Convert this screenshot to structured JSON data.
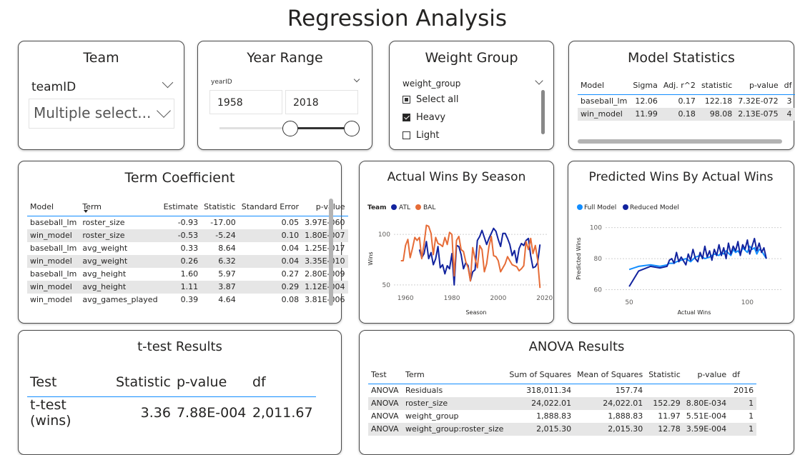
{
  "page": {
    "title": "Regression Analysis"
  },
  "team": {
    "title": "Team",
    "field": "teamID",
    "value": "Multiple select..."
  },
  "year_range": {
    "title": "Year Range",
    "field": "yearID",
    "start": "1958",
    "end": "2018"
  },
  "weight_group": {
    "title": "Weight Group",
    "field": "weight_group",
    "options": [
      {
        "label": "Select all",
        "state": "partial"
      },
      {
        "label": "Heavy",
        "state": "checked"
      },
      {
        "label": "Light",
        "state": "unchecked"
      }
    ]
  },
  "model_stats": {
    "title": "Model Statistics",
    "columns": [
      "Model",
      "Sigma",
      "Adj. r^2",
      "statistic",
      "p-value",
      "df"
    ],
    "rows": [
      [
        "baseball_lm",
        "12.06",
        "0.17",
        "122.18",
        "7.32E-072",
        "3"
      ],
      [
        "win_model",
        "11.99",
        "0.18",
        "98.08",
        "2.13E-075",
        "4"
      ]
    ]
  },
  "term_coef": {
    "title": "Term Coefficient",
    "columns": [
      "Model",
      "Term",
      "Estimate",
      "Statistic",
      "Standard Error",
      "p-value"
    ],
    "rows": [
      [
        "baseball_lm",
        "roster_size",
        "-0.93",
        "-17.00",
        "0.05",
        "3.97E-060"
      ],
      [
        "win_model",
        "roster_size",
        "-0.53",
        "-5.24",
        "0.10",
        "1.80E-007"
      ],
      [
        "baseball_lm",
        "avg_weight",
        "0.33",
        "8.64",
        "0.04",
        "1.25E-017"
      ],
      [
        "win_model",
        "avg_weight",
        "0.26",
        "6.32",
        "0.04",
        "3.35E-010"
      ],
      [
        "baseball_lm",
        "avg_height",
        "1.60",
        "5.97",
        "0.27",
        "2.80E-009"
      ],
      [
        "win_model",
        "avg_height",
        "1.11",
        "3.87",
        "0.29",
        "1.12E-004"
      ],
      [
        "win_model",
        "avg_games_played",
        "0.39",
        "4.64",
        "0.08",
        "3.81E-006"
      ]
    ]
  },
  "ttest": {
    "title": "t-test Results",
    "columns": [
      "Test",
      "Statistic",
      "p-value",
      "df"
    ],
    "rows": [
      [
        "t-test (wins)",
        "3.36",
        "7.88E-004",
        "2,011.67"
      ]
    ]
  },
  "anova": {
    "title": "ANOVA Results",
    "columns": [
      "Test",
      "Term",
      "Sum of Squares",
      "Mean of Squares",
      "Statistic",
      "p-value",
      "df"
    ],
    "rows": [
      [
        "ANOVA",
        "Residuals",
        "318,011.34",
        "157.74",
        "",
        "",
        "2016"
      ],
      [
        "ANOVA",
        "roster_size",
        "24,022.01",
        "24,022.01",
        "152.29",
        "8.80E-034",
        "1"
      ],
      [
        "ANOVA",
        "weight_group",
        "1,888.83",
        "1,888.83",
        "11.97",
        "5.51E-004",
        "1"
      ],
      [
        "ANOVA",
        "weight_group:roster_size",
        "2,015.30",
        "2,015.30",
        "12.78",
        "3.59E-004",
        "1"
      ]
    ]
  },
  "chart_data": [
    {
      "id": "actual_wins",
      "type": "line",
      "title": "Actual Wins By Season",
      "xlabel": "Season",
      "ylabel": "Wins",
      "legend_title": "Team",
      "xlim": [
        1955,
        2021
      ],
      "ylim": [
        45,
        110
      ],
      "xticks": [
        1960,
        1980,
        2000,
        2020
      ],
      "yticks": [
        50,
        100
      ],
      "series": [
        {
          "name": "ATL",
          "color": "#12239e",
          "x": [
            1966,
            1967,
            1968,
            1969,
            1970,
            1971,
            1972,
            1973,
            1974,
            1975,
            1976,
            1977,
            1978,
            1979,
            1980,
            1981,
            1982,
            1983,
            1984,
            1985,
            1986,
            1987,
            1988,
            1989,
            1990,
            1991,
            1992,
            1993,
            1995,
            1996,
            1997,
            1998,
            1999,
            2000,
            2001,
            2002,
            2003,
            2004,
            2005,
            2006,
            2007,
            2008,
            2009,
            2010,
            2011,
            2012,
            2013,
            2014,
            2015,
            2016,
            2017,
            2018
          ],
          "y": [
            85,
            77,
            81,
            93,
            76,
            82,
            70,
            76,
            88,
            67,
            70,
            61,
            69,
            66,
            81,
            50,
            89,
            88,
            80,
            66,
            72,
            69,
            54,
            63,
            65,
            94,
            98,
            104,
            90,
            96,
            101,
            106,
            103,
            95,
            88,
            101,
            101,
            96,
            90,
            79,
            84,
            72,
            86,
            91,
            89,
            94,
            96,
            79,
            67,
            68,
            72,
            90
          ]
        },
        {
          "name": "BAL",
          "color": "#e66c37",
          "x": [
            1958,
            1959,
            1960,
            1961,
            1962,
            1963,
            1964,
            1965,
            1966,
            1967,
            1968,
            1969,
            1970,
            1971,
            1972,
            1973,
            1974,
            1975,
            1976,
            1977,
            1978,
            1979,
            1980,
            1981,
            1982,
            1983,
            1984,
            1985,
            1986,
            1987,
            1988,
            1989,
            1990,
            1991,
            1992,
            1993,
            1994,
            1995,
            1996,
            1997,
            1998,
            1999,
            2000,
            2001,
            2002,
            2003,
            2004,
            2005,
            2006,
            2007,
            2008,
            2009,
            2010,
            2011,
            2012,
            2013,
            2014,
            2015,
            2016,
            2017,
            2018
          ],
          "y": [
            74,
            74,
            89,
            95,
            77,
            86,
            97,
            94,
            97,
            76,
            91,
            109,
            108,
            101,
            80,
            97,
            91,
            90,
            88,
            97,
            90,
            102,
            100,
            59,
            94,
            98,
            85,
            83,
            73,
            67,
            54,
            87,
            76,
            67,
            89,
            85,
            63,
            71,
            88,
            98,
            79,
            78,
            74,
            63,
            67,
            71,
            78,
            74,
            70,
            69,
            68,
            64,
            66,
            69,
            93,
            85,
            96,
            81,
            89,
            75,
            47
          ]
        }
      ]
    },
    {
      "id": "predicted_wins",
      "type": "line",
      "title": "Predicted Wins By Actual Wins",
      "xlabel": "Actual Wins",
      "ylabel": "Predicted Wins",
      "xlim": [
        40,
        115
      ],
      "ylim": [
        57,
        104
      ],
      "xticks": [
        50,
        100
      ],
      "yticks": [
        60,
        80,
        100
      ],
      "series": [
        {
          "name": "Full Model",
          "color": "#118dff",
          "x": [
            50,
            54,
            59,
            63,
            66,
            67,
            69,
            70,
            72,
            74,
            76,
            78,
            80,
            82,
            84,
            86,
            88,
            89,
            90,
            91,
            93,
            94,
            95,
            96,
            97,
            98,
            100,
            101,
            102,
            103,
            104,
            105,
            106,
            108
          ],
          "y": [
            73,
            75,
            76,
            75,
            76,
            77,
            77,
            78,
            79,
            80,
            78,
            81,
            82,
            80,
            81,
            83,
            82,
            84,
            83,
            85,
            82,
            86,
            84,
            85,
            83,
            87,
            84,
            88,
            86,
            87,
            83,
            86,
            85,
            80
          ]
        },
        {
          "name": "Reduced Model",
          "color": "#12239e",
          "x": [
            50,
            54,
            59,
            63,
            66,
            67,
            68,
            69,
            70,
            71,
            72,
            74,
            75,
            76,
            77,
            78,
            79,
            80,
            81,
            82,
            83,
            84,
            85,
            86,
            87,
            88,
            89,
            90,
            91,
            92,
            93,
            94,
            95,
            96,
            97,
            98,
            99,
            100,
            101,
            102,
            103,
            104,
            105,
            106,
            107,
            108
          ],
          "y": [
            62,
            72,
            75,
            74,
            75,
            79,
            80,
            77,
            84,
            78,
            81,
            76,
            83,
            79,
            86,
            80,
            78,
            84,
            80,
            88,
            81,
            85,
            79,
            86,
            82,
            89,
            82,
            87,
            80,
            90,
            83,
            88,
            85,
            91,
            82,
            89,
            86,
            92,
            83,
            88,
            93,
            85,
            90,
            84,
            87,
            80
          ]
        }
      ]
    }
  ]
}
